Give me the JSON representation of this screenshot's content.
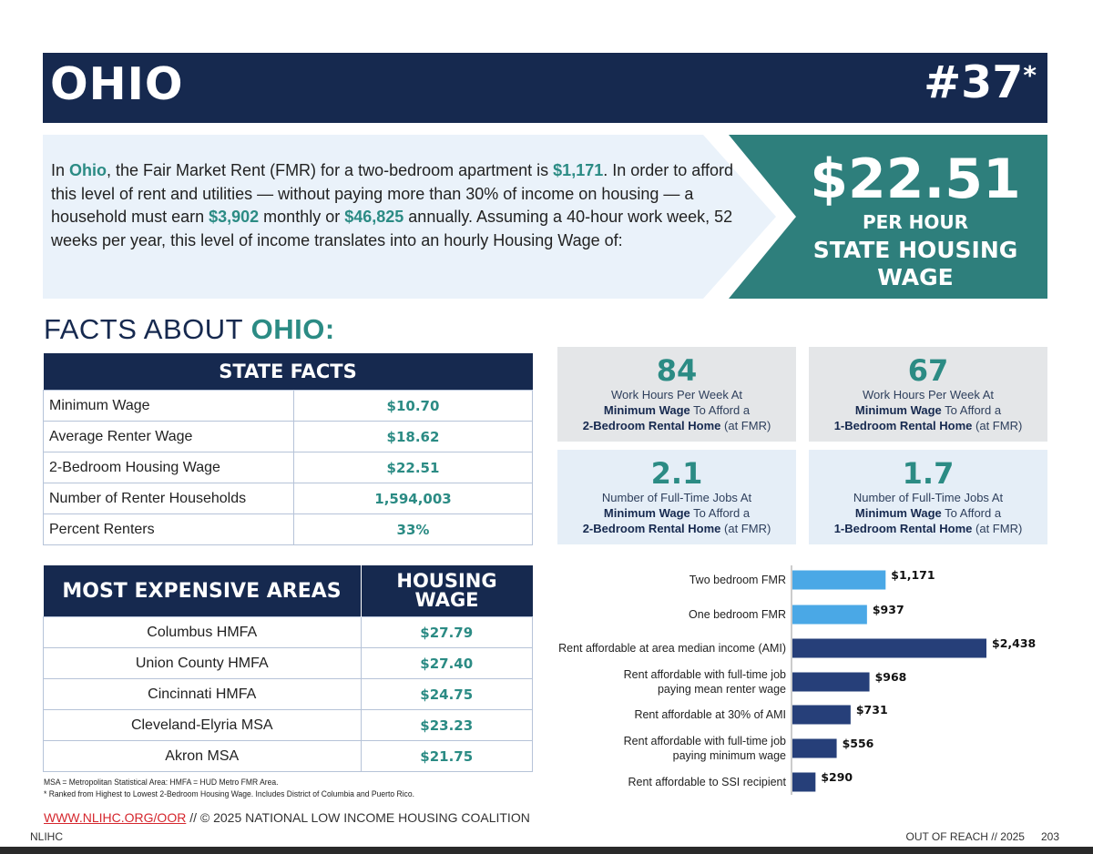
{
  "header": {
    "state": "OHIO",
    "rank": "#37",
    "rank_mark": "*"
  },
  "intro": {
    "p1": "In ",
    "state": "Ohio",
    "p2": ", the Fair Market Rent (FMR) for a two-bedroom apartment is ",
    "fmr": "$1,171",
    "p3": ". In order to afford this level of rent and utilities — without paying more than 30% of income on housing — a household must earn ",
    "monthly": "$3,902",
    "p4": " monthly or ",
    "annual": "$46,825",
    "p5": " annually. Assuming a 40-hour work week, 52 weeks per year, this level of income translates into an hourly Housing Wage of:"
  },
  "wage_badge": {
    "amount": "$22.51",
    "per_hour": "PER HOUR",
    "label_line1": "STATE HOUSING",
    "label_line2": "WAGE"
  },
  "facts_heading": {
    "prefix": "FACTS ABOUT ",
    "state": "OHIO:"
  },
  "state_facts": {
    "title": "STATE FACTS",
    "rows": [
      {
        "label": "Minimum Wage",
        "value": "$10.70"
      },
      {
        "label": "Average Renter Wage",
        "value": "$18.62"
      },
      {
        "label": "2-Bedroom Housing Wage",
        "value": "$22.51"
      },
      {
        "label": "Number of Renter Households",
        "value": "1,594,003"
      },
      {
        "label": "Percent Renters",
        "value": "33%"
      }
    ]
  },
  "expensive_areas": {
    "header_left": "MOST EXPENSIVE AREAS",
    "header_right_1": "HOUSING",
    "header_right_2": "WAGE",
    "rows": [
      {
        "area": "Columbus HMFA",
        "wage": "$27.79"
      },
      {
        "area": "Union County HMFA",
        "wage": "$27.40"
      },
      {
        "area": "Cincinnati HMFA",
        "wage": "$24.75"
      },
      {
        "area": "Cleveland-Elyria MSA",
        "wage": "$23.23"
      },
      {
        "area": "Akron MSA",
        "wage": "$21.75"
      }
    ]
  },
  "footnotes": {
    "line1": "MSA = Metropolitan Statistical Area: HMFA = HUD Metro FMR Area.",
    "line2": "* Ranked from Highest to Lowest 2-Bedroom Housing Wage. Includes District of Columbia and Puerto Rico."
  },
  "footer": {
    "link": "WWW.NLIHC.ORG/OOR",
    "copyright": " // © 2025 NATIONAL LOW INCOME HOUSING COALITION",
    "org": "NLIHC",
    "publication": "OUT OF REACH // 2025",
    "page": "203"
  },
  "stats": [
    {
      "value": "84",
      "line1": "Work Hours Per Week At",
      "bold2": "Minimum Wage",
      "rest2": " To Afford a",
      "bold3": "2-Bedroom Rental Home",
      "rest3": " (at FMR)"
    },
    {
      "value": "67",
      "line1": "Work Hours Per Week At",
      "bold2": "Minimum Wage",
      "rest2": " To Afford a",
      "bold3": "1-Bedroom Rental Home",
      "rest3": " (at FMR)"
    },
    {
      "value": "2.1",
      "line1": "Number of Full-Time Jobs At",
      "bold2": "Minimum Wage",
      "rest2": " To Afford a",
      "bold3": "2-Bedroom Rental Home",
      "rest3": " (at FMR)"
    },
    {
      "value": "1.7",
      "line1": "Number of Full-Time Jobs At",
      "bold2": "Minimum Wage",
      "rest2": " To Afford a",
      "bold3": "1-Bedroom Rental Home",
      "rest3": " (at FMR)"
    }
  ],
  "colors": {
    "navy": "#16294f",
    "teal": "#2b8b84",
    "bar_light": "#4aa8e6",
    "bar_dark": "#263f79",
    "link_red": "#d5272e"
  },
  "chart_data": {
    "type": "bar",
    "orientation": "horizontal",
    "categories": [
      [
        "Two bedroom FMR"
      ],
      [
        "One bedroom FMR"
      ],
      [
        "Rent affordable at area median income (AMI)"
      ],
      [
        "Rent affordable with full-time job",
        "paying mean renter wage"
      ],
      [
        "Rent affordable at 30% of AMI"
      ],
      [
        "Rent affordable with full-time job",
        "paying minimum wage"
      ],
      [
        "Rent affordable to SSI recipient"
      ]
    ],
    "values": [
      1171,
      937,
      2438,
      968,
      731,
      556,
      290
    ],
    "value_labels": [
      "$1,171",
      "$937",
      "$2,438",
      "$968",
      "$731",
      "$556",
      "$290"
    ],
    "bar_colors": [
      "#4aa8e6",
      "#4aa8e6",
      "#263f79",
      "#263f79",
      "#263f79",
      "#263f79",
      "#263f79"
    ],
    "xlim": [
      0,
      2438
    ]
  }
}
